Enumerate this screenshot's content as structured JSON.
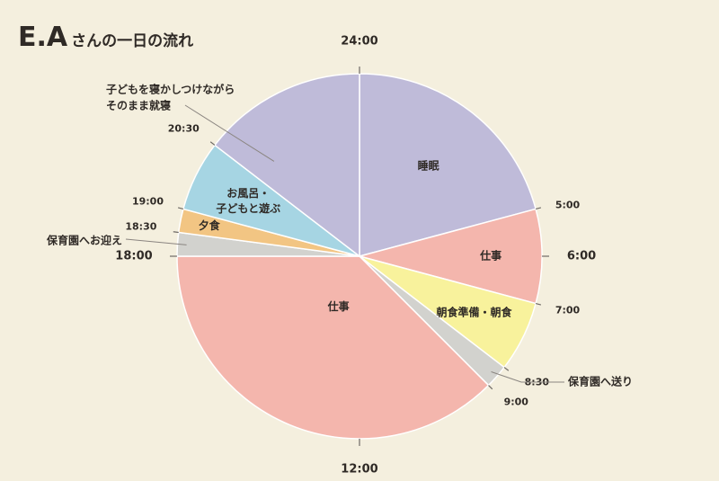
{
  "header": {
    "title_main": "E.A",
    "title_sub": "さんの一日の流れ"
  },
  "chart_data": {
    "type": "pie",
    "title": "E.Aさんの一日の流れ",
    "unit": "hours",
    "start_time": "24:00",
    "slices": [
      {
        "label": "睡眠",
        "start": "24:00",
        "end": "5:00",
        "hours": 5,
        "color": "#bfbbd9"
      },
      {
        "label": "仕事",
        "start": "5:00",
        "end": "7:00",
        "hours": 2,
        "color": "#f4b6ad"
      },
      {
        "label": "朝食準備・朝食",
        "start": "7:00",
        "end": "8:30",
        "hours": 1.5,
        "color": "#f8f29c"
      },
      {
        "label": "保育園へ送り",
        "start": "8:30",
        "end": "9:00",
        "hours": 0.5,
        "color": "#d2d2ce"
      },
      {
        "label": "仕事",
        "start": "9:00",
        "end": "18:00",
        "hours": 9,
        "color": "#f4b6ad"
      },
      {
        "label": "保育園へお迎え",
        "start": "18:00",
        "end": "18:30",
        "hours": 0.5,
        "color": "#d2d2ce"
      },
      {
        "label": "夕食",
        "start": "18:30",
        "end": "19:00",
        "hours": 0.5,
        "color": "#f2c583"
      },
      {
        "label": "お風呂・子どもと遊ぶ",
        "start": "19:00",
        "end": "20:30",
        "hours": 1.5,
        "color": "#a6d5e3"
      },
      {
        "label": "子どもを寝かしつけながらそのまま就寝",
        "start": "20:30",
        "end": "24:00",
        "hours": 3.5,
        "color": "#bfbbd9"
      }
    ],
    "inner_labels": [
      {
        "text": "睡眠",
        "slice": 0,
        "lines": [
          "睡眠"
        ]
      },
      {
        "text": "仕事",
        "slice": 1,
        "lines": [
          "仕事"
        ]
      },
      {
        "text": "朝食準備・朝食",
        "slice": 2,
        "lines": [
          "朝食準備・朝食"
        ]
      },
      {
        "text": "仕事",
        "slice": 4,
        "lines": [
          "仕事"
        ]
      },
      {
        "text": "夕食",
        "slice": 6,
        "lines": [
          "夕食"
        ]
      },
      {
        "text": "お風呂・子どもと遊ぶ",
        "slice": 7,
        "lines": [
          "お風呂・",
          "子どもと遊ぶ"
        ]
      }
    ],
    "outer_callouts": [
      {
        "text": "保育園へ送り",
        "slice": 3
      },
      {
        "text": "保育園へお迎え",
        "slice": 5
      },
      {
        "text": "子どもを寝かしつけながらそのまま就寝",
        "slice": 8,
        "lines": [
          "子どもを寝かしつけながら",
          "そのまま就寝"
        ]
      }
    ],
    "time_ticks": [
      {
        "label": "24:00",
        "hour": 0,
        "major": true
      },
      {
        "label": "5:00",
        "hour": 5,
        "major": false
      },
      {
        "label": "6:00",
        "hour": 6,
        "major": true
      },
      {
        "label": "7:00",
        "hour": 7,
        "major": false
      },
      {
        "label": "8:30",
        "hour": 8.5,
        "major": false
      },
      {
        "label": "9:00",
        "hour": 9,
        "major": false
      },
      {
        "label": "12:00",
        "hour": 12,
        "major": true
      },
      {
        "label": "18:00",
        "hour": 18,
        "major": true
      },
      {
        "label": "18:30",
        "hour": 18.5,
        "major": false
      },
      {
        "label": "19:00",
        "hour": 19,
        "major": false
      },
      {
        "label": "20:30",
        "hour": 20.5,
        "major": false
      }
    ],
    "colors": {
      "background": "#f4efde",
      "separator": "#ffffff",
      "leader": "#8a8580"
    }
  }
}
